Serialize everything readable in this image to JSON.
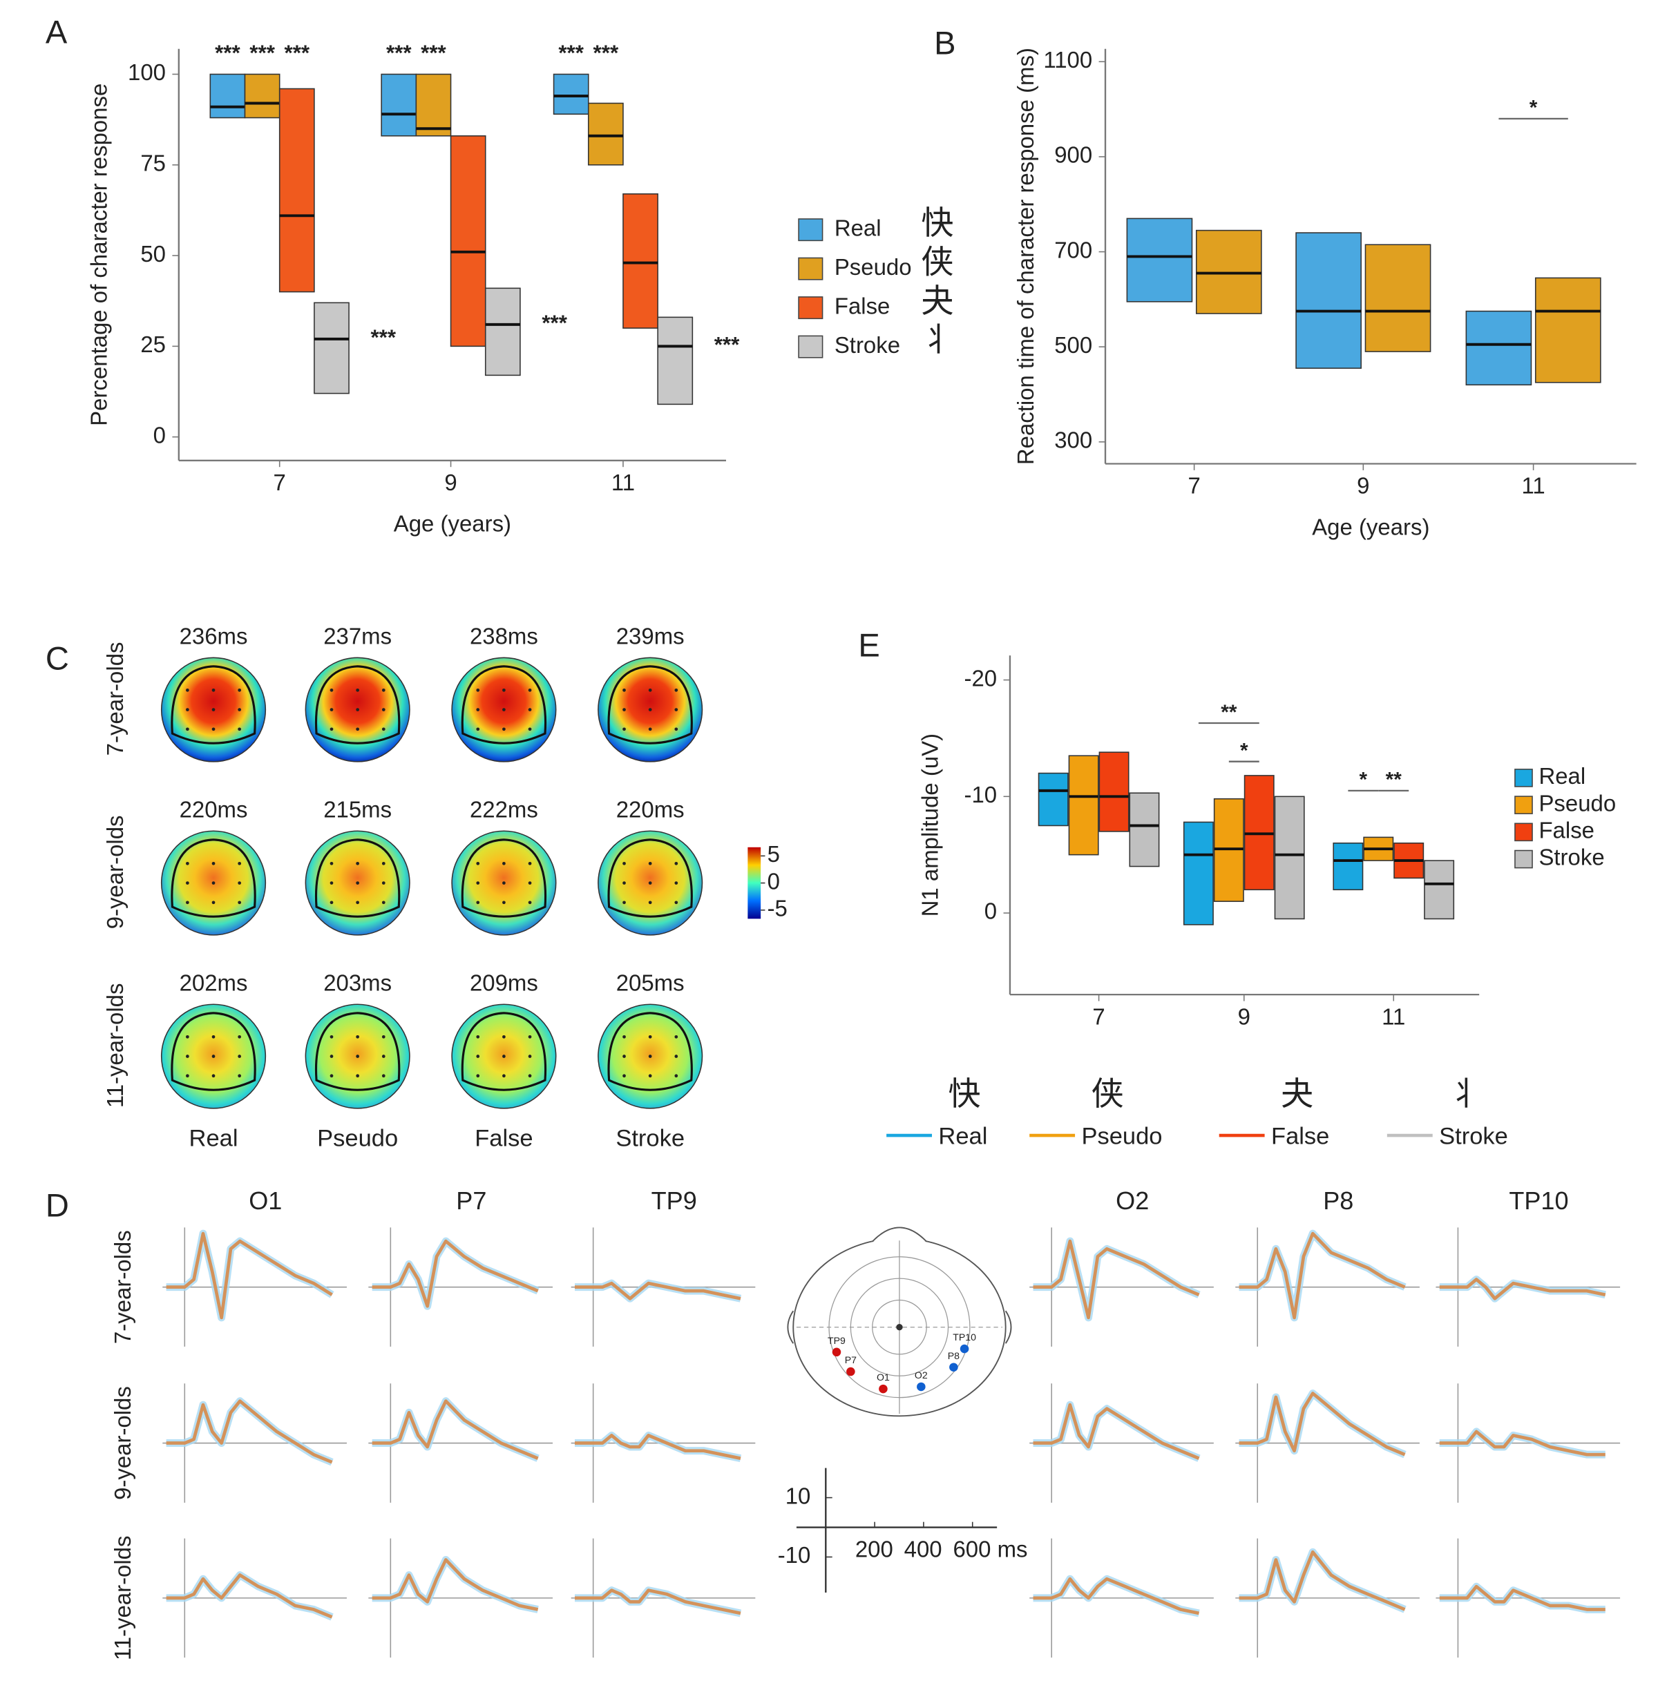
{
  "panel_labels": [
    "A",
    "B",
    "C",
    "D",
    "E"
  ],
  "chart_data": [
    {
      "type": "box",
      "ylabel": "Percentage of character response",
      "xlabel": "Age (years)",
      "categories": [
        "7",
        "9",
        "11"
      ],
      "ylim": [
        -6.5,
        107
      ],
      "yticks": [
        0,
        25,
        50,
        75,
        100
      ],
      "series": [
        {
          "name": "Real",
          "color": "#4aa8e0",
          "text_color": "#74c4ef",
          "glyph": "快",
          "glyph_color": "#d7b23a",
          "q1": [
            88,
            83,
            89
          ],
          "median": [
            91,
            89,
            94
          ],
          "q3": [
            100,
            100,
            100
          ],
          "sig": [
            "***",
            "***",
            "***"
          ]
        },
        {
          "name": "Pseudo",
          "color": "#e0a020",
          "text_color": "#f0b030",
          "glyph": "侠",
          "glyph_color": "#e07090",
          "q1": [
            88,
            83,
            75
          ],
          "median": [
            92,
            85,
            83
          ],
          "q3": [
            100,
            100,
            92
          ],
          "sig": [
            "***",
            "***",
            "***"
          ]
        },
        {
          "name": "False",
          "color": "#f05a1e",
          "text_color": "#f05a1e",
          "glyph": "夬",
          "glyph_color": "#c8c020",
          "q1": [
            40,
            25,
            30
          ],
          "median": [
            61,
            51,
            48
          ],
          "q3": [
            96,
            83,
            67
          ],
          "sig": [
            "***",
            null,
            null
          ]
        },
        {
          "name": "Stroke",
          "color": "#c8c8c8",
          "text_color": "#d4d4d4",
          "glyph": "丬",
          "glyph_color": "#111111",
          "q1": [
            12,
            17,
            9
          ],
          "median": [
            27,
            31,
            25
          ],
          "q3": [
            37,
            41,
            33
          ],
          "sig": [
            "***",
            "***",
            "***"
          ],
          "sig_position": "right"
        }
      ]
    },
    {
      "type": "box",
      "ylabel": "Reaction time of character response (ms)",
      "xlabel": "Age (years)",
      "categories": [
        "7",
        "9",
        "11"
      ],
      "ylim": [
        254,
        1127
      ],
      "yticks": [
        300,
        500,
        700,
        900,
        1100
      ],
      "series": [
        {
          "name": "Real",
          "color": "#4aa8e0",
          "q1": [
            595,
            455,
            420
          ],
          "median": [
            690,
            575,
            505
          ],
          "q3": [
            770,
            740,
            575
          ]
        },
        {
          "name": "Pseudo",
          "color": "#e0a020",
          "q1": [
            570,
            490,
            425
          ],
          "median": [
            655,
            575,
            575
          ],
          "q3": [
            745,
            715,
            645
          ]
        }
      ],
      "brackets": [
        {
          "label": "*",
          "y": 980,
          "from": [
            2,
            0
          ],
          "to": [
            2,
            1
          ]
        }
      ]
    },
    {
      "type": "topomap",
      "rows": [
        "7-year-olds",
        "9-year-olds",
        "11-year-olds"
      ],
      "times": [
        [
          "236ms",
          "237ms",
          "238ms",
          "239ms"
        ],
        [
          "220ms",
          "215ms",
          "222ms",
          "220ms"
        ],
        [
          "202ms",
          "203ms",
          "209ms",
          "205ms"
        ]
      ],
      "columns": [
        {
          "name": "Real",
          "color": "#4fc1f0"
        },
        {
          "name": "Pseudo",
          "color": "#f5b03a"
        },
        {
          "name": "False",
          "color": "#f5703a"
        },
        {
          "name": "Stroke",
          "color": "#cfcfcf"
        }
      ],
      "clim": [
        -6.6,
        6.6
      ],
      "cticks": [
        5,
        0,
        -5
      ]
    },
    {
      "type": "line",
      "electrodes": [
        "O1",
        "P7",
        "TP9",
        "O2",
        "P8",
        "TP10"
      ],
      "rows": [
        "7-year-olds",
        "9-year-olds",
        "11-year-olds"
      ],
      "x": [
        -100,
        0,
        50,
        100,
        150,
        200,
        250,
        300,
        400,
        500,
        600,
        700,
        800
      ],
      "xlim": [
        -120,
        880
      ],
      "ylim": [
        -14,
        20
      ],
      "color": "#d4925a",
      "band_color": "#a6d8f2",
      "waves": [
        [
          [
            0,
            0,
            2,
            14,
            4,
            -8,
            10,
            12,
            9,
            6,
            3,
            1,
            -2
          ],
          [
            0,
            0,
            1,
            6,
            2,
            -5,
            8,
            12,
            8,
            5,
            3,
            1,
            -1
          ],
          [
            0,
            0,
            0,
            1,
            -1,
            -3,
            -1,
            1,
            0,
            -1,
            -1,
            -2,
            -3
          ],
          [
            0,
            0,
            2,
            12,
            2,
            -8,
            8,
            10,
            8,
            6,
            3,
            0,
            -2
          ],
          [
            0,
            0,
            2,
            10,
            4,
            -8,
            8,
            14,
            9,
            7,
            5,
            2,
            0
          ],
          [
            0,
            0,
            0,
            2,
            0,
            -3,
            -1,
            1,
            0,
            -1,
            -1,
            -1,
            -2
          ]
        ],
        [
          [
            0,
            0,
            1,
            10,
            3,
            0,
            8,
            11,
            7,
            3,
            0,
            -3,
            -5
          ],
          [
            0,
            0,
            1,
            8,
            2,
            -1,
            6,
            11,
            6,
            3,
            0,
            -2,
            -4
          ],
          [
            0,
            0,
            0,
            2,
            0,
            -1,
            -1,
            2,
            0,
            -2,
            -2,
            -3,
            -4
          ],
          [
            0,
            0,
            1,
            10,
            2,
            -1,
            7,
            9,
            6,
            3,
            0,
            -2,
            -4
          ],
          [
            0,
            0,
            1,
            12,
            3,
            -2,
            9,
            13,
            9,
            5,
            2,
            -1,
            -3
          ],
          [
            0,
            0,
            0,
            3,
            1,
            -1,
            -1,
            2,
            1,
            -1,
            -2,
            -3,
            -3
          ]
        ],
        [
          [
            0,
            0,
            1,
            5,
            2,
            0,
            3,
            6,
            3,
            1,
            -2,
            -3,
            -5
          ],
          [
            0,
            0,
            1,
            6,
            1,
            -1,
            5,
            10,
            5,
            2,
            0,
            -2,
            -3
          ],
          [
            0,
            0,
            0,
            2,
            1,
            -1,
            -1,
            2,
            1,
            -1,
            -2,
            -3,
            -4
          ],
          [
            0,
            0,
            1,
            5,
            2,
            0,
            3,
            5,
            3,
            1,
            -1,
            -3,
            -4
          ],
          [
            0,
            0,
            1,
            10,
            2,
            -1,
            6,
            12,
            6,
            3,
            1,
            -1,
            -3
          ],
          [
            0,
            0,
            0,
            3,
            1,
            -1,
            -1,
            2,
            0,
            -2,
            -2,
            -3,
            -3
          ]
        ]
      ],
      "scalebar": {
        "xlim": [
          0,
          700
        ],
        "ylim": [
          -22,
          20
        ],
        "xticks": [
          200,
          400,
          {
            "value": 600,
            "label": "600 ms"
          }
        ],
        "yticks": [
          10,
          -10
        ]
      }
    },
    {
      "type": "box",
      "ylabel": "N1 amplitude (uV)",
      "categories": [
        "7",
        "9",
        "11"
      ],
      "ylim": [
        7,
        -22.1
      ],
      "yticks": [
        -20,
        -10,
        0
      ],
      "series": [
        {
          "name": "Real",
          "color": "#1aa7e0",
          "text_color": "#3cb8ee",
          "glyph": "快",
          "glyph_color": "#d0a040",
          "q1": [
            -7.5,
            1,
            -2
          ],
          "median": [
            -10.5,
            -5,
            -4.5
          ],
          "q3": [
            -12,
            -7.8,
            -6
          ]
        },
        {
          "name": "Pseudo",
          "color": "#f0a010",
          "text_color": "#f2a21c",
          "glyph": "侠",
          "glyph_color": "#e07090",
          "q1": [
            -5,
            -1,
            -4.5
          ],
          "median": [
            -10,
            -5.5,
            -5.5
          ],
          "q3": [
            -13.5,
            -9.8,
            -6.5
          ]
        },
        {
          "name": "False",
          "color": "#f04010",
          "text_color": "#f25a2a",
          "glyph": "夬",
          "glyph_color": "#c8c020",
          "q1": [
            -7,
            -2,
            -3
          ],
          "median": [
            -10,
            -6.8,
            -4.5
          ],
          "q3": [
            -13.8,
            -11.8,
            -6
          ]
        },
        {
          "name": "Stroke",
          "color": "#c0c0c0",
          "text_color": "#cfcfcf",
          "glyph": "丬",
          "glyph_color": "#111111",
          "q1": [
            -4,
            0.5,
            0.5
          ],
          "median": [
            -7.5,
            -5,
            -2.5
          ],
          "q3": [
            -10.3,
            -10,
            -4.5
          ]
        }
      ],
      "brackets": [
        {
          "label": "**",
          "y": -16.3,
          "from": [
            1,
            0
          ],
          "to": [
            1,
            2
          ]
        },
        {
          "label": "*",
          "y": -13,
          "from": [
            1,
            1
          ],
          "to": [
            1,
            2
          ]
        },
        {
          "label": "*",
          "y": -10.5,
          "from": [
            2,
            0
          ],
          "to": [
            2,
            1
          ]
        },
        {
          "label": "**",
          "y": -10.5,
          "from": [
            2,
            1
          ],
          "to": [
            2,
            2
          ]
        }
      ]
    }
  ]
}
